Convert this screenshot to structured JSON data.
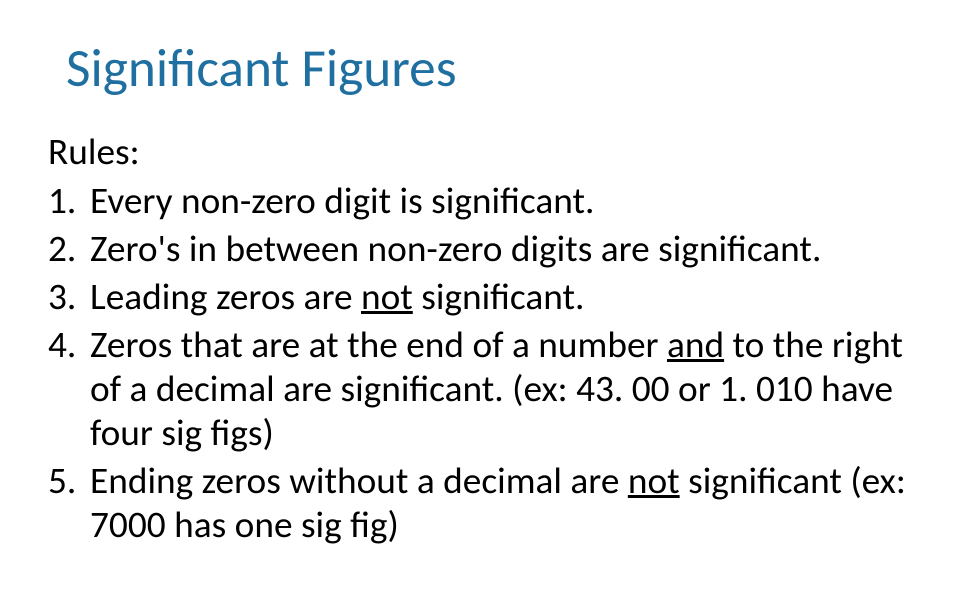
{
  "slide": {
    "background_color": "#ffffff",
    "title": {
      "text": "Significant Figures",
      "color": "#1f6fa1",
      "fontsize_pt": 40,
      "font_weight": 400
    },
    "subheading": {
      "text": "Rules:",
      "color": "#000000",
      "fontsize_pt": 28,
      "font_weight": 400
    },
    "body_fontsize_pt": 28,
    "body_color": "#000000",
    "rules": [
      {
        "segments": [
          {
            "text": "Every non-zero digit is significant."
          }
        ]
      },
      {
        "segments": [
          {
            "text": "Zero's in between non-zero digits are significant."
          }
        ]
      },
      {
        "segments": [
          {
            "text": "Leading zeros are "
          },
          {
            "text": "not",
            "underline": true
          },
          {
            "text": " significant."
          }
        ]
      },
      {
        "segments": [
          {
            "text": "Zeros that are at the end of a number "
          },
          {
            "text": "and",
            "underline": true
          },
          {
            "text": " to the right of a decimal are significant. (ex: 43. 00 or 1. 010 have four sig figs)"
          }
        ]
      },
      {
        "segments": [
          {
            "text": "Ending zeros without a decimal are "
          },
          {
            "text": "not",
            "underline": true
          },
          {
            "text": " significant (ex: 7000 has one sig fig)"
          }
        ]
      }
    ]
  }
}
